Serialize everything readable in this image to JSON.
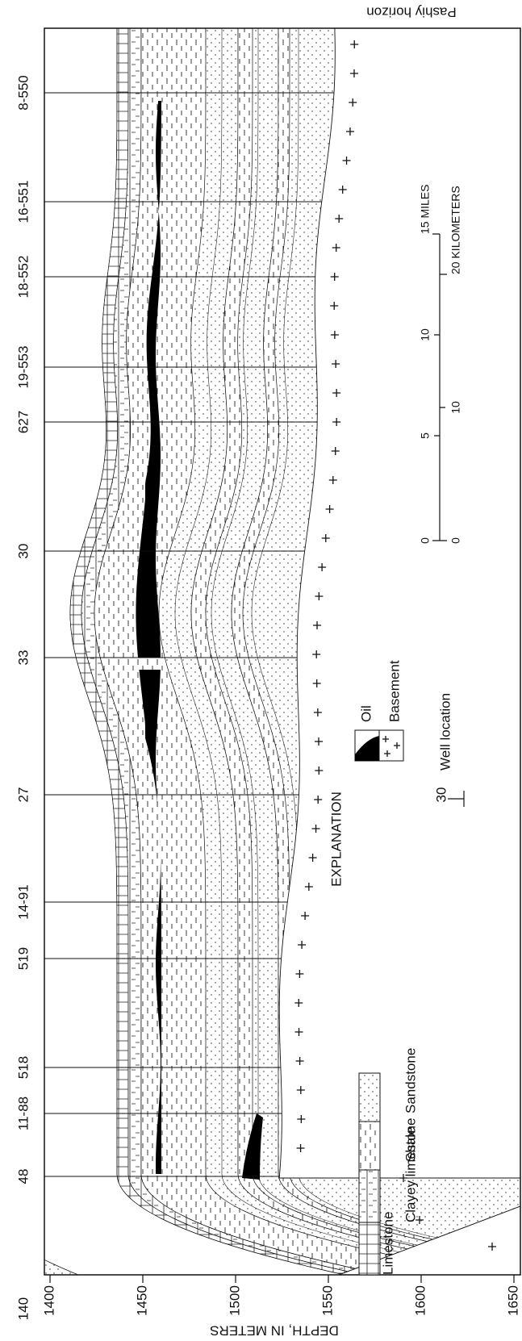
{
  "title": "Pashiy horizon",
  "axis": {
    "title": "DEPTH, IN METERS",
    "ticks": [
      "1400",
      "1450",
      "1500",
      "1550",
      "1600",
      "1650"
    ]
  },
  "wells": [
    {
      "label": "8-550"
    },
    {
      "label": "16-551"
    },
    {
      "label": "18-552"
    },
    {
      "label": "19-553"
    },
    {
      "label": "627"
    },
    {
      "label": "30"
    },
    {
      "label": "33"
    },
    {
      "label": "27"
    },
    {
      "label": "14-91"
    },
    {
      "label": "519"
    },
    {
      "label": "518"
    },
    {
      "label": "11-88"
    },
    {
      "label": "48"
    },
    {
      "label": "140"
    }
  ],
  "explanation": {
    "title": "EXPLANATION",
    "items": [
      "Limestone",
      "Clayey limestone",
      "Shale",
      "Sandstone",
      "Oil",
      "Basement",
      "Well location"
    ],
    "well_symbol": "30"
  },
  "scale": {
    "miles": [
      "0",
      "5",
      "10",
      "15 MILES"
    ],
    "kilometers": [
      "0",
      "10",
      "20 KILOMETERS"
    ]
  }
}
